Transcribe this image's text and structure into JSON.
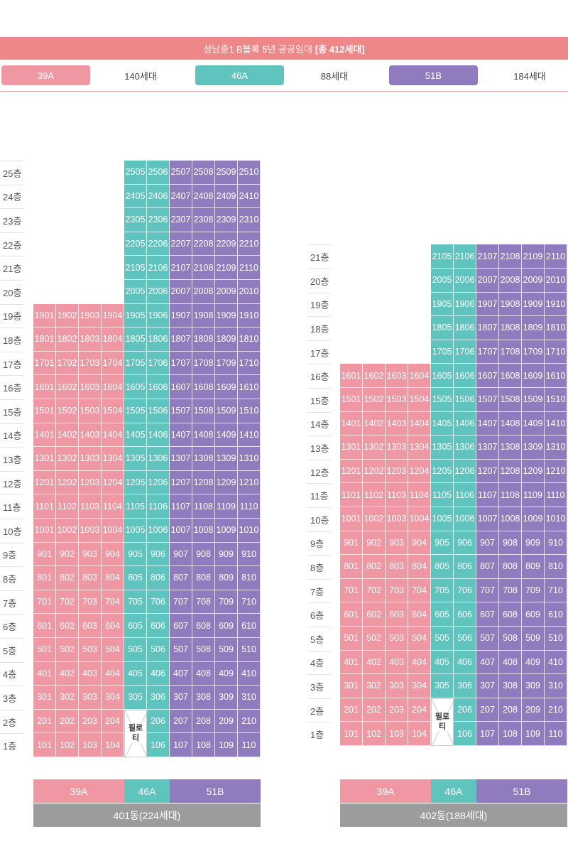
{
  "colors": {
    "title": "#ee8787",
    "39A": "#ef98a4",
    "46A": "#5ec4bd",
    "51B": "#8f7bbd"
  },
  "title": {
    "text": "성남중1 B블록 5년 공공임대",
    "total": "[총 412세대]"
  },
  "legend": [
    {
      "type": "39A",
      "label": "39A",
      "count": "140세대"
    },
    {
      "type": "46A",
      "label": "46A",
      "count": "88세대"
    },
    {
      "type": "51B",
      "label": "51B",
      "count": "184세대"
    }
  ],
  "buildings": [
    {
      "name": "401동(224세대)",
      "max_floor": 25,
      "floor_suffix": "층",
      "piloti_label": "필로티",
      "type_labels": [
        "39A",
        "46A",
        "51B"
      ],
      "columns": [
        {
          "line": "01",
          "type": "39A",
          "floors": [
            1,
            19
          ]
        },
        {
          "line": "02",
          "type": "39A",
          "floors": [
            1,
            19
          ]
        },
        {
          "line": "03",
          "type": "39A",
          "floors": [
            1,
            19
          ]
        },
        {
          "line": "04",
          "type": "39A",
          "floors": [
            1,
            19
          ]
        },
        {
          "line": "05",
          "type": "46A",
          "floors": [
            3,
            25
          ]
        },
        {
          "line": "06",
          "type": "46A",
          "floors": [
            1,
            25
          ]
        },
        {
          "line": "07",
          "type": "51B",
          "floors": [
            1,
            25
          ]
        },
        {
          "line": "08",
          "type": "51B",
          "floors": [
            1,
            25
          ]
        },
        {
          "line": "09",
          "type": "51B",
          "floors": [
            1,
            25
          ]
        },
        {
          "line": "10",
          "type": "51B",
          "floors": [
            1,
            25
          ]
        }
      ]
    },
    {
      "name": "402동(188세대)",
      "max_floor": 21,
      "floor_suffix": "층",
      "piloti_label": "필로티",
      "type_labels": [
        "39A",
        "46A",
        "51B"
      ],
      "columns": [
        {
          "line": "01",
          "type": "39A",
          "floors": [
            1,
            16
          ]
        },
        {
          "line": "02",
          "type": "39A",
          "floors": [
            1,
            16
          ]
        },
        {
          "line": "03",
          "type": "39A",
          "floors": [
            1,
            16
          ]
        },
        {
          "line": "04",
          "type": "39A",
          "floors": [
            1,
            16
          ]
        },
        {
          "line": "05",
          "type": "46A",
          "floors": [
            3,
            21
          ]
        },
        {
          "line": "06",
          "type": "46A",
          "floors": [
            1,
            21
          ]
        },
        {
          "line": "07",
          "type": "51B",
          "floors": [
            1,
            21
          ]
        },
        {
          "line": "08",
          "type": "51B",
          "floors": [
            1,
            21
          ]
        },
        {
          "line": "09",
          "type": "51B",
          "floors": [
            1,
            21
          ]
        },
        {
          "line": "10",
          "type": "51B",
          "floors": [
            1,
            21
          ]
        }
      ]
    }
  ]
}
